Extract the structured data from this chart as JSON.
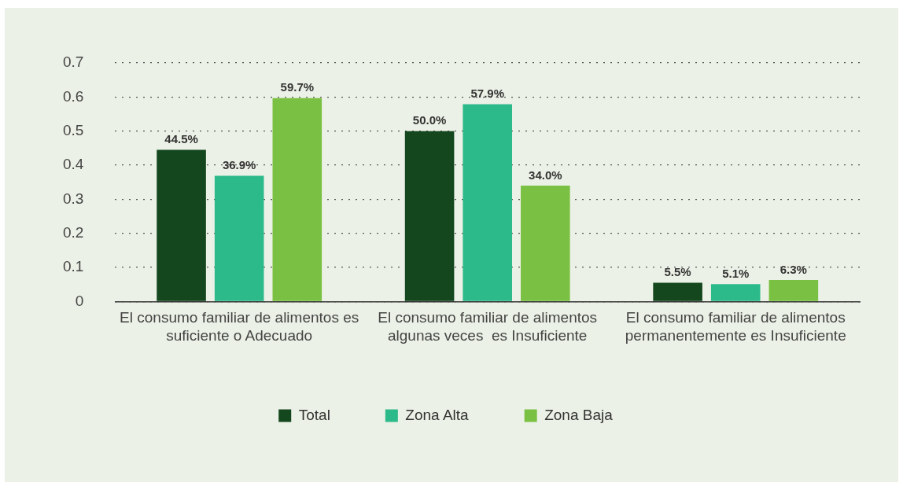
{
  "chart_data": {
    "type": "bar",
    "categories": [
      "El consumo familiar de alimentos es suficiente o Adecuado",
      "El consumo familiar de alimentos algunas veces  es Insuficiente",
      "El consumo familiar de alimentos permanentemente es Insuficiente"
    ],
    "series": [
      {
        "name": "Total",
        "color": "#14471e",
        "values": [
          0.445,
          0.5,
          0.055
        ],
        "value_labels": [
          "44.5%",
          "50.0%",
          "5.5%"
        ]
      },
      {
        "name": "Zona Alta",
        "color": "#2dba8a",
        "values": [
          0.369,
          0.579,
          0.051
        ],
        "value_labels": [
          "36.9%",
          "57.9%",
          "5.1%"
        ]
      },
      {
        "name": "Zona Baja",
        "color": "#7ac143",
        "values": [
          0.597,
          0.34,
          0.063
        ],
        "value_labels": [
          "59.7%",
          "34.0%",
          "6.3%"
        ]
      }
    ],
    "ylim": [
      0,
      0.7
    ],
    "yticks": [
      0,
      0.1,
      0.2,
      0.3,
      0.4,
      0.5,
      0.6,
      0.7
    ],
    "grid": "y",
    "legend": "bottom"
  }
}
